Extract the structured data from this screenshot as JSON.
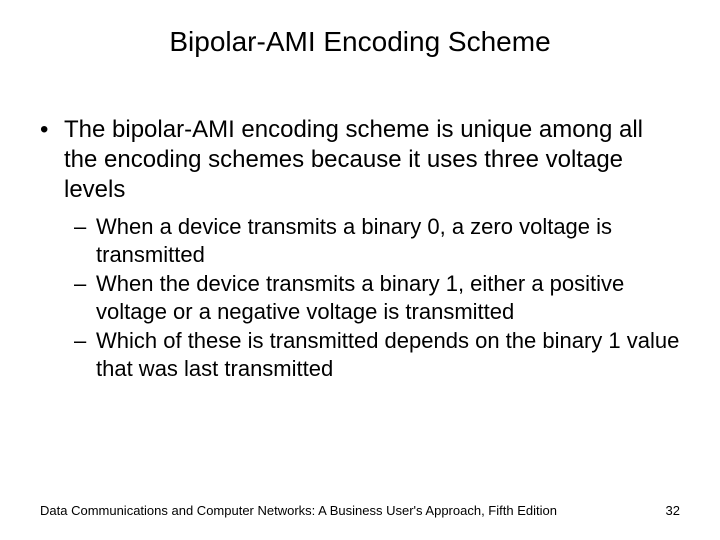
{
  "title": "Bipolar-AMI Encoding Scheme",
  "bullets": {
    "main": "The bipolar-AMI encoding scheme is unique among all the encoding schemes because it uses three voltage levels",
    "sub1": "When a device transmits a binary 0, a zero voltage is transmitted",
    "sub2": "When the device transmits a binary 1, either a positive voltage or a negative voltage is transmitted",
    "sub3": "Which of these is transmitted depends on the binary 1 value that was last transmitted"
  },
  "footer": {
    "source": "Data Communications and Computer Networks: A Business User's Approach, Fifth Edition",
    "page": "32"
  },
  "markers": {
    "l1": "•",
    "l2": "–"
  },
  "style": {
    "background": "#ffffff",
    "text_color": "#000000",
    "title_fontsize": 28,
    "body_fontsize": 24,
    "sub_fontsize": 22,
    "footer_fontsize": 13,
    "font_family": "Arial"
  }
}
